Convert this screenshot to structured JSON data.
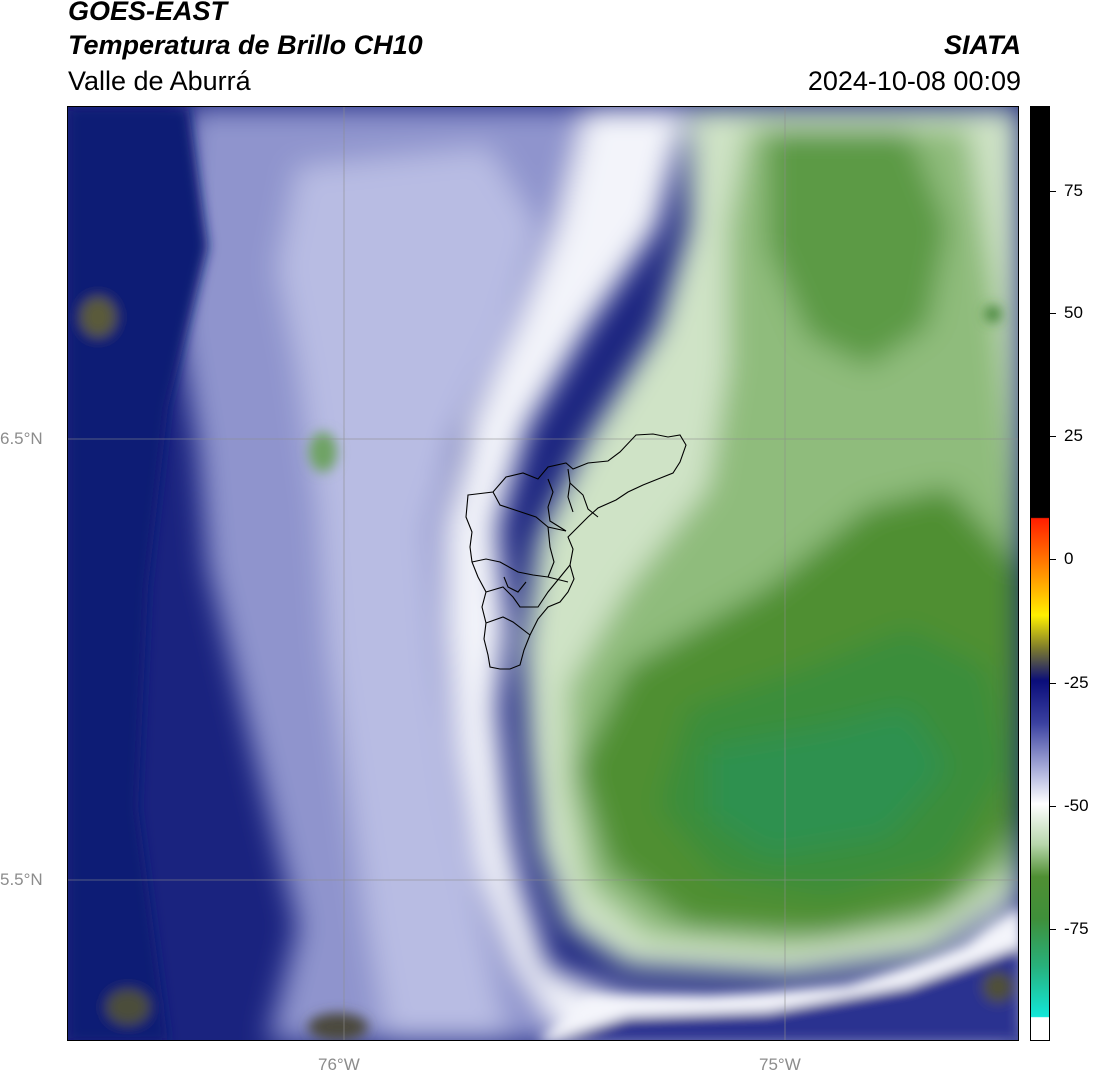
{
  "header": {
    "line1": "GOES-EAST",
    "line2": "Temperatura de Brillo CH10",
    "line3": "Valle de Aburrá",
    "org": "SIATA",
    "timestamp": "2024-10-08 00:09"
  },
  "axes": {
    "lat_labels": [
      "6.5°N",
      "5.5°N"
    ],
    "lon_labels": [
      "76°W",
      "75°W"
    ]
  },
  "colorbar": {
    "ticks": [
      "75",
      "50",
      "25",
      "0",
      "-25",
      "-50",
      "-75"
    ],
    "colors": {
      "black": "#000000",
      "red": "#ff2a00",
      "orange": "#ff9d00",
      "yellow": "#ffe900",
      "olive": "#7f7a2a",
      "navy": "#0b0f7a",
      "lavender": "#b9bde0",
      "white": "#ffffff",
      "green": "#3f8e2a",
      "teal": "#2ab78a",
      "cyan": "#14e6d8"
    }
  },
  "map": {
    "region": "Valle de Aburrá",
    "palette": {
      "navy": "#0f1a7e",
      "blue": "#2f3a98",
      "lavender": "#b4b9df",
      "white": "#ffffff",
      "pale_green": "#cfe2c7",
      "mid_green": "#8fbc7b",
      "green": "#458c2f",
      "deep_green": "#2f8a3b",
      "olive": "#4a4f2f"
    }
  }
}
